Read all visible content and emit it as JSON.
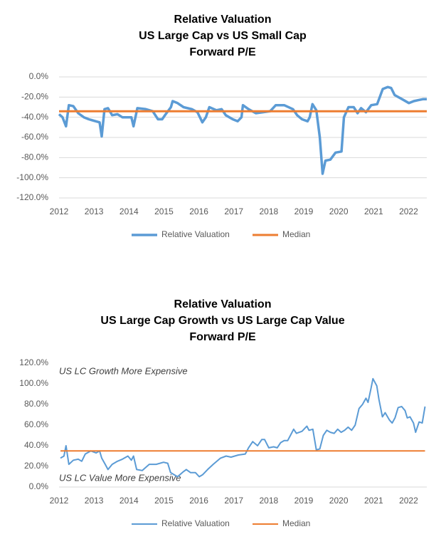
{
  "chart_data": [
    {
      "type": "line",
      "title": [
        "Relative Valuation",
        "US Large Cap vs US Small Cap",
        "Forward P/E"
      ],
      "xlim": [
        2012,
        2022.52
      ],
      "xticks": [
        2012,
        2013,
        2014,
        2015,
        2016,
        2017,
        2018,
        2019,
        2020,
        2021,
        2022
      ],
      "ylim": [
        -120,
        0
      ],
      "yticks": [
        {
          "value": 0,
          "label": "0.0%"
        },
        {
          "value": -20,
          "label": "-20.0%"
        },
        {
          "value": -40,
          "label": "-40.0%"
        },
        {
          "value": -60,
          "label": "-60.0%"
        },
        {
          "value": -80,
          "label": "-80.0%"
        },
        {
          "value": -100,
          "label": "-100.0%"
        },
        {
          "value": -120,
          "label": "-120.0%"
        }
      ],
      "grid": true,
      "series": [
        {
          "name": "Relative Valuation",
          "color": "#5b9bd5",
          "width": 3.5,
          "x": [
            2012.0,
            2012.1,
            2012.2,
            2012.28,
            2012.41,
            2012.55,
            2012.71,
            2012.85,
            2013.05,
            2013.16,
            2013.22,
            2013.3,
            2013.4,
            2013.52,
            2013.67,
            2013.81,
            2014.07,
            2014.13,
            2014.24,
            2014.48,
            2014.68,
            2014.83,
            2014.95,
            2015.05,
            2015.2,
            2015.25,
            2015.39,
            2015.56,
            2015.8,
            2015.96,
            2016.1,
            2016.2,
            2016.3,
            2016.5,
            2016.65,
            2016.77,
            2016.97,
            2017.11,
            2017.22,
            2017.26,
            2017.42,
            2017.63,
            2017.83,
            2018.04,
            2018.2,
            2018.44,
            2018.69,
            2018.81,
            2018.95,
            2019.11,
            2019.17,
            2019.25,
            2019.36,
            2019.46,
            2019.54,
            2019.62,
            2019.76,
            2019.91,
            2020.08,
            2020.15,
            2020.28,
            2020.43,
            2020.54,
            2020.64,
            2020.78,
            2020.93,
            2021.1,
            2021.26,
            2021.4,
            2021.5,
            2021.6,
            2021.81,
            2022.01,
            2022.15,
            2022.28,
            2022.42,
            2022.52
          ],
          "values": [
            -37,
            -40,
            -49,
            -28,
            -29,
            -36,
            -40,
            -42,
            -44,
            -45,
            -59,
            -32,
            -31,
            -38,
            -37,
            -40,
            -40,
            -49,
            -31,
            -32,
            -34,
            -42,
            -42,
            -37,
            -30,
            -24,
            -26,
            -30,
            -32,
            -35,
            -45,
            -40,
            -30,
            -33,
            -32,
            -38,
            -42,
            -44,
            -40,
            -28,
            -32,
            -36,
            -35,
            -34,
            -28,
            -28,
            -32,
            -38,
            -42,
            -44,
            -40,
            -27,
            -33,
            -60,
            -96,
            -83,
            -82,
            -75,
            -74,
            -40,
            -30,
            -30,
            -36,
            -31,
            -35,
            -28,
            -27,
            -12,
            -10,
            -11,
            -18,
            -22,
            -26,
            -24,
            -23,
            -22,
            -22
          ]
        },
        {
          "name": "Median",
          "color": "#ed7d31",
          "width": 3,
          "x": [
            2012.0,
            2022.52
          ],
          "values": [
            -34,
            -34
          ]
        }
      ]
    },
    {
      "type": "line",
      "title": [
        "Relative Valuation",
        "US Large Cap Growth vs US Large Cap Value",
        "Forward P/E"
      ],
      "annotations": [
        "US LC Growth More Expensive",
        "US LC Value More Expensive"
      ],
      "xlim": [
        2012,
        2022.52
      ],
      "xticks": [
        2012,
        2013,
        2014,
        2015,
        2016,
        2017,
        2018,
        2019,
        2020,
        2021,
        2022
      ],
      "ylim": [
        0,
        120
      ],
      "yticks": [
        {
          "value": 0,
          "label": "0.0%"
        },
        {
          "value": 20,
          "label": "20.0%"
        },
        {
          "value": 40,
          "label": "40.0%"
        },
        {
          "value": 60,
          "label": "60.0%"
        },
        {
          "value": 80,
          "label": "80.0%"
        },
        {
          "value": 100,
          "label": "100.0%"
        },
        {
          "value": 120,
          "label": "120.0%"
        }
      ],
      "grid": false,
      "series": [
        {
          "name": "Relative Valuation",
          "color": "#5b9bd5",
          "width": 2,
          "x": [
            2012.04,
            2012.14,
            2012.2,
            2012.28,
            2012.41,
            2012.55,
            2012.65,
            2012.75,
            2012.91,
            2013.06,
            2013.16,
            2013.22,
            2013.32,
            2013.4,
            2013.52,
            2013.67,
            2013.81,
            2013.97,
            2014.07,
            2014.13,
            2014.22,
            2014.38,
            2014.58,
            2014.78,
            2014.99,
            2015.11,
            2015.19,
            2015.29,
            2015.39,
            2015.56,
            2015.64,
            2015.76,
            2015.9,
            2016.01,
            2016.11,
            2016.25,
            2016.41,
            2016.62,
            2016.78,
            2016.92,
            2017.13,
            2017.33,
            2017.42,
            2017.54,
            2017.68,
            2017.8,
            2017.88,
            2018.0,
            2018.14,
            2018.24,
            2018.34,
            2018.44,
            2018.54,
            2018.65,
            2018.71,
            2018.79,
            2018.95,
            2019.09,
            2019.15,
            2019.26,
            2019.36,
            2019.46,
            2019.56,
            2019.66,
            2019.76,
            2019.87,
            2019.97,
            2020.07,
            2020.17,
            2020.27,
            2020.37,
            2020.47,
            2020.58,
            2020.68,
            2020.78,
            2020.84,
            2020.92,
            2020.98,
            2021.09,
            2021.15,
            2021.25,
            2021.33,
            2021.45,
            2021.53,
            2021.61,
            2021.7,
            2021.8,
            2021.9,
            2021.96,
            2022.04,
            2022.14,
            2022.2,
            2022.3,
            2022.39,
            2022.47
          ],
          "values": [
            28,
            30,
            40,
            22,
            26,
            27,
            25,
            32,
            35,
            33,
            35,
            28,
            22,
            17,
            22,
            25,
            27,
            30,
            26,
            30,
            17,
            16,
            22,
            22,
            24,
            23,
            14,
            12,
            10,
            15,
            17,
            14,
            14,
            10,
            12,
            17,
            22,
            28,
            30,
            29,
            31,
            32,
            38,
            44,
            40,
            46,
            46,
            38,
            39,
            38,
            43,
            45,
            45,
            52,
            56,
            52,
            54,
            59,
            55,
            56,
            36,
            37,
            50,
            55,
            53,
            52,
            56,
            53,
            55,
            58,
            55,
            60,
            76,
            80,
            86,
            82,
            95,
            105,
            98,
            85,
            68,
            72,
            65,
            62,
            67,
            77,
            78,
            74,
            67,
            68,
            62,
            53,
            63,
            62,
            78
          ]
        },
        {
          "name": "Median",
          "color": "#ed7d31",
          "width": 2,
          "x": [
            2012.04,
            2022.47
          ],
          "values": [
            35,
            35
          ]
        }
      ]
    }
  ]
}
